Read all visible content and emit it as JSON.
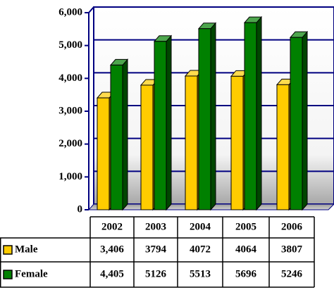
{
  "chart_data": {
    "type": "bar",
    "categories": [
      "2002",
      "2003",
      "2004",
      "2005",
      "2006"
    ],
    "series": [
      {
        "name": "Male",
        "color": "#ffcc00",
        "values": [
          3406,
          3794,
          4072,
          4064,
          3807
        ],
        "value_labels": [
          "3,406",
          "3794",
          "4072",
          "4064",
          "3807"
        ]
      },
      {
        "name": "Female",
        "color": "#008000",
        "values": [
          4405,
          5126,
          5513,
          5696,
          5246
        ],
        "value_labels": [
          "4,405",
          "5126",
          "5513",
          "5696",
          "5246"
        ]
      }
    ],
    "ylim": [
      0,
      6000
    ],
    "yticks": [
      0,
      {
        "value": 1000,
        "label": "1,000"
      },
      {
        "value": 2000,
        "label": "2,000"
      },
      {
        "value": 3000,
        "label": "3,000"
      },
      {
        "value": 4000,
        "label": "4,000"
      },
      {
        "value": 5000,
        "label": "5,000"
      },
      {
        "value": 6000,
        "label": "6,000"
      }
    ],
    "grid": true
  }
}
